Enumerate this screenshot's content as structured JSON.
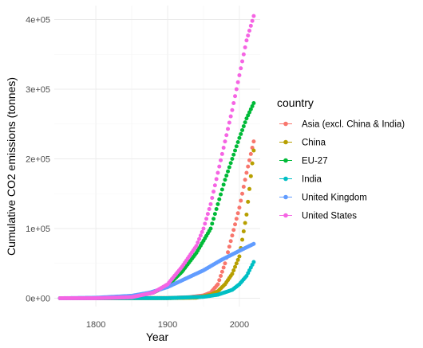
{
  "chart_data": {
    "type": "scatter",
    "xlabel": "Year",
    "ylabel": "Cumulative CO2 emissions (tonnes)",
    "xlim": [
      1742,
      2029
    ],
    "ylim": [
      -12000,
      420000
    ],
    "x_ticks": [
      1800,
      1900,
      2000
    ],
    "x_tick_labels": [
      "1800",
      "1900",
      "2000"
    ],
    "y_ticks": [
      0,
      100000,
      200000,
      300000,
      400000
    ],
    "y_tick_labels": [
      "0e+00",
      "1e+05",
      "2e+05",
      "3e+05",
      "4e+05"
    ],
    "grid": true,
    "legend": {
      "title": "country",
      "position": "right"
    },
    "series": [
      {
        "name": "Asia (excl. China & India)",
        "color": "#F8766D",
        "start": 1750,
        "end": 2020,
        "step": 2,
        "anchors": [
          [
            1750,
            0
          ],
          [
            1900,
            300
          ],
          [
            1930,
            1500
          ],
          [
            1950,
            4000
          ],
          [
            1960,
            8000
          ],
          [
            1970,
            20000
          ],
          [
            1980,
            50000
          ],
          [
            1990,
            90000
          ],
          [
            2000,
            130000
          ],
          [
            2010,
            180000
          ],
          [
            2020,
            225000
          ]
        ]
      },
      {
        "name": "China",
        "color": "#B79F00",
        "start": 1750,
        "end": 2020,
        "step": 2,
        "anchors": [
          [
            1750,
            0
          ],
          [
            1900,
            100
          ],
          [
            1940,
            800
          ],
          [
            1960,
            5000
          ],
          [
            1970,
            10000
          ],
          [
            1980,
            20000
          ],
          [
            1990,
            35000
          ],
          [
            2000,
            60000
          ],
          [
            2010,
            120000
          ],
          [
            2020,
            212000
          ]
        ]
      },
      {
        "name": "EU-27",
        "color": "#00BA38",
        "start": 1750,
        "end": 2020,
        "step": 2,
        "anchors": [
          [
            1750,
            0
          ],
          [
            1800,
            100
          ],
          [
            1850,
            2000
          ],
          [
            1880,
            8000
          ],
          [
            1900,
            18000
          ],
          [
            1920,
            38000
          ],
          [
            1940,
            65000
          ],
          [
            1960,
            100000
          ],
          [
            1970,
            135000
          ],
          [
            1980,
            170000
          ],
          [
            1990,
            200000
          ],
          [
            2000,
            230000
          ],
          [
            2010,
            258000
          ],
          [
            2020,
            280000
          ]
        ]
      },
      {
        "name": "India",
        "color": "#00BFC4",
        "start": 1750,
        "end": 2020,
        "step": 2,
        "anchors": [
          [
            1750,
            0
          ],
          [
            1900,
            200
          ],
          [
            1950,
            2000
          ],
          [
            1970,
            5000
          ],
          [
            1990,
            12000
          ],
          [
            2000,
            20000
          ],
          [
            2010,
            32000
          ],
          [
            2020,
            52000
          ]
        ]
      },
      {
        "name": "United Kingdom",
        "color": "#619CFF",
        "start": 1750,
        "end": 2020,
        "step": 2,
        "anchors": [
          [
            1750,
            0
          ],
          [
            1800,
            700
          ],
          [
            1850,
            3500
          ],
          [
            1875,
            8000
          ],
          [
            1900,
            16000
          ],
          [
            1925,
            28000
          ],
          [
            1950,
            40000
          ],
          [
            1975,
            55000
          ],
          [
            2000,
            68000
          ],
          [
            2020,
            78000
          ]
        ]
      },
      {
        "name": "United States",
        "color": "#F564E3",
        "start": 1750,
        "end": 2020,
        "step": 2,
        "anchors": [
          [
            1750,
            0
          ],
          [
            1800,
            50
          ],
          [
            1850,
            1500
          ],
          [
            1880,
            8000
          ],
          [
            1900,
            20000
          ],
          [
            1920,
            45000
          ],
          [
            1940,
            75000
          ],
          [
            1950,
            100000
          ],
          [
            1960,
            135000
          ],
          [
            1970,
            180000
          ],
          [
            1980,
            225000
          ],
          [
            1990,
            270000
          ],
          [
            2000,
            320000
          ],
          [
            2010,
            370000
          ],
          [
            2020,
            405000
          ]
        ]
      }
    ]
  }
}
